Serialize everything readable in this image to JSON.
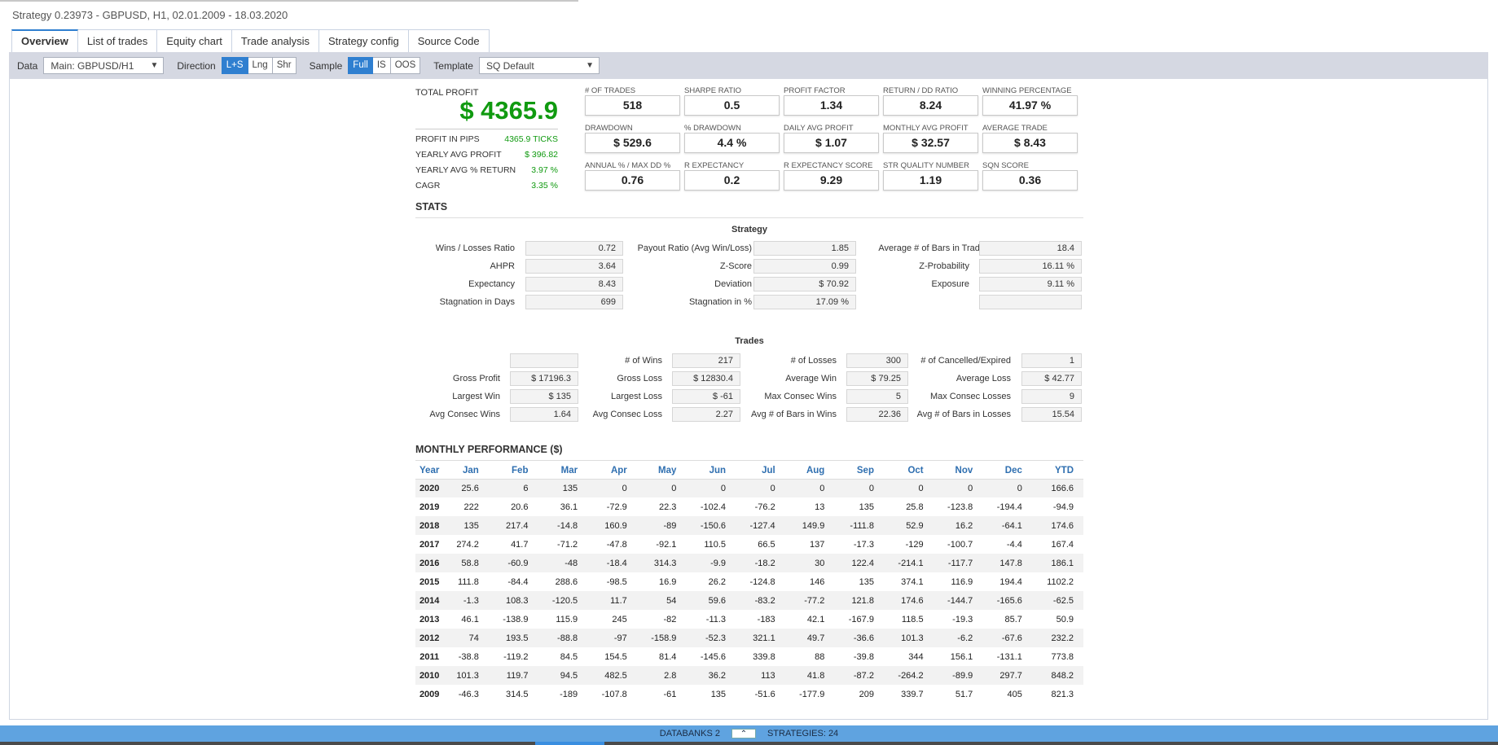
{
  "window_title": "Strategy 0.23973 - GBPUSD, H1, 02.01.2009 - 18.03.2020",
  "tabs": [
    "Overview",
    "List of trades",
    "Equity chart",
    "Trade analysis",
    "Strategy config",
    "Source Code"
  ],
  "toolbar": {
    "data_label": "Data",
    "data_value": "Main: GBPUSD/H1",
    "direction_label": "Direction",
    "direction_options": [
      "L+S",
      "Lng",
      "Shr"
    ],
    "direction_selected": "L+S",
    "sample_label": "Sample",
    "sample_options": [
      "Full",
      "IS",
      "OOS"
    ],
    "sample_selected": "Full",
    "template_label": "Template",
    "template_value": "SQ Default"
  },
  "total_profit": {
    "label": "TOTAL PROFIT",
    "value": "$ 4365.9",
    "rows": [
      {
        "label": "PROFIT IN PIPS",
        "value": "4365.9 TICKS"
      },
      {
        "label": "YEARLY AVG PROFIT",
        "value": "$ 396.82"
      },
      {
        "label": "YEARLY AVG % RETURN",
        "value": "3.97 %"
      },
      {
        "label": "CAGR",
        "value": "3.35 %"
      }
    ]
  },
  "metrics": [
    {
      "label": "# OF TRADES",
      "value": "518"
    },
    {
      "label": "SHARPE RATIO",
      "value": "0.5"
    },
    {
      "label": "PROFIT FACTOR",
      "value": "1.34"
    },
    {
      "label": "RETURN / DD RATIO",
      "value": "8.24"
    },
    {
      "label": "WINNING PERCENTAGE",
      "value": "41.97 %"
    },
    {
      "label": "DRAWDOWN",
      "value": "$ 529.6"
    },
    {
      "label": "% DRAWDOWN",
      "value": "4.4 %"
    },
    {
      "label": "DAILY AVG PROFIT",
      "value": "$ 1.07"
    },
    {
      "label": "MONTHLY AVG PROFIT",
      "value": "$ 32.57"
    },
    {
      "label": "AVERAGE TRADE",
      "value": "$ 8.43"
    },
    {
      "label": "ANNUAL % / MAX DD %",
      "value": "0.76"
    },
    {
      "label": "R EXPECTANCY",
      "value": "0.2"
    },
    {
      "label": "R EXPECTANCY SCORE",
      "value": "9.29"
    },
    {
      "label": "STR QUALITY NUMBER",
      "value": "1.19"
    },
    {
      "label": "SQN SCORE",
      "value": "0.36"
    }
  ],
  "stats": {
    "title": "STATS",
    "strategy_title": "Strategy",
    "strategy_rows": [
      [
        {
          "label": "Wins / Losses Ratio",
          "value": "0.72"
        },
        {
          "label": "Payout Ratio (Avg Win/Loss)",
          "value": "1.85"
        },
        {
          "label": "Average # of Bars in Trade",
          "value": "18.4"
        }
      ],
      [
        {
          "label": "AHPR",
          "value": "3.64"
        },
        {
          "label": "Z-Score",
          "value": "0.99"
        },
        {
          "label": "Z-Probability",
          "value": "16.11 %"
        }
      ],
      [
        {
          "label": "Expectancy",
          "value": "8.43"
        },
        {
          "label": "Deviation",
          "value": "$ 70.92"
        },
        {
          "label": "Exposure",
          "value": "9.11 %"
        }
      ],
      [
        {
          "label": "Stagnation in Days",
          "value": "699"
        },
        {
          "label": "Stagnation in %",
          "value": "17.09 %"
        },
        {
          "label": "",
          "value": ""
        }
      ]
    ],
    "trades_title": "Trades",
    "trades_rows": [
      [
        {
          "label": "",
          "value": ""
        },
        {
          "label": "# of Wins",
          "value": "217"
        },
        {
          "label": "# of Losses",
          "value": "300"
        },
        {
          "label": "# of Cancelled/Expired",
          "value": "1"
        }
      ],
      [
        {
          "label": "Gross Profit",
          "value": "$ 17196.3"
        },
        {
          "label": "Gross Loss",
          "value": "$ 12830.4"
        },
        {
          "label": "Average Win",
          "value": "$ 79.25"
        },
        {
          "label": "Average Loss",
          "value": "$ 42.77"
        }
      ],
      [
        {
          "label": "Largest Win",
          "value": "$ 135"
        },
        {
          "label": "Largest Loss",
          "value": "$ -61"
        },
        {
          "label": "Max Consec Wins",
          "value": "5"
        },
        {
          "label": "Max Consec Losses",
          "value": "9"
        }
      ],
      [
        {
          "label": "Avg Consec Wins",
          "value": "1.64"
        },
        {
          "label": "Avg Consec Loss",
          "value": "2.27"
        },
        {
          "label": "Avg # of Bars in Wins",
          "value": "22.36"
        },
        {
          "label": "Avg # of Bars in Losses",
          "value": "15.54"
        }
      ]
    ]
  },
  "monthly": {
    "title": "MONTHLY PERFORMANCE ($)",
    "headers": [
      "Year",
      "Jan",
      "Feb",
      "Mar",
      "Apr",
      "May",
      "Jun",
      "Jul",
      "Aug",
      "Sep",
      "Oct",
      "Nov",
      "Dec",
      "YTD"
    ],
    "rows": [
      [
        "2020",
        "25.6",
        "6",
        "135",
        "0",
        "0",
        "0",
        "0",
        "0",
        "0",
        "0",
        "0",
        "0",
        "166.6"
      ],
      [
        "2019",
        "222",
        "20.6",
        "36.1",
        "-72.9",
        "22.3",
        "-102.4",
        "-76.2",
        "13",
        "135",
        "25.8",
        "-123.8",
        "-194.4",
        "-94.9"
      ],
      [
        "2018",
        "135",
        "217.4",
        "-14.8",
        "160.9",
        "-89",
        "-150.6",
        "-127.4",
        "149.9",
        "-111.8",
        "52.9",
        "16.2",
        "-64.1",
        "174.6"
      ],
      [
        "2017",
        "274.2",
        "41.7",
        "-71.2",
        "-47.8",
        "-92.1",
        "110.5",
        "66.5",
        "137",
        "-17.3",
        "-129",
        "-100.7",
        "-4.4",
        "167.4"
      ],
      [
        "2016",
        "58.8",
        "-60.9",
        "-48",
        "-18.4",
        "314.3",
        "-9.9",
        "-18.2",
        "30",
        "122.4",
        "-214.1",
        "-117.7",
        "147.8",
        "186.1"
      ],
      [
        "2015",
        "111.8",
        "-84.4",
        "288.6",
        "-98.5",
        "16.9",
        "26.2",
        "-124.8",
        "146",
        "135",
        "374.1",
        "116.9",
        "194.4",
        "1102.2"
      ],
      [
        "2014",
        "-1.3",
        "108.3",
        "-120.5",
        "11.7",
        "54",
        "59.6",
        "-83.2",
        "-77.2",
        "121.8",
        "174.6",
        "-144.7",
        "-165.6",
        "-62.5"
      ],
      [
        "2013",
        "46.1",
        "-138.9",
        "115.9",
        "245",
        "-82",
        "-11.3",
        "-183",
        "42.1",
        "-167.9",
        "118.5",
        "-19.3",
        "85.7",
        "50.9"
      ],
      [
        "2012",
        "74",
        "193.5",
        "-88.8",
        "-97",
        "-158.9",
        "-52.3",
        "321.1",
        "49.7",
        "-36.6",
        "101.3",
        "-6.2",
        "-67.6",
        "232.2"
      ],
      [
        "2011",
        "-38.8",
        "-119.2",
        "84.5",
        "154.5",
        "81.4",
        "-145.6",
        "339.8",
        "88",
        "-39.8",
        "344",
        "156.1",
        "-131.1",
        "773.8"
      ],
      [
        "2010",
        "101.3",
        "119.7",
        "94.5",
        "482.5",
        "2.8",
        "36.2",
        "113",
        "41.8",
        "-87.2",
        "-264.2",
        "-89.9",
        "297.7",
        "848.2"
      ],
      [
        "2009",
        "-46.3",
        "314.5",
        "-189",
        "-107.8",
        "-61",
        "135",
        "-51.6",
        "-177.9",
        "209",
        "339.7",
        "51.7",
        "405",
        "821.3"
      ]
    ]
  },
  "bottom_bar": {
    "databanks": "DATABANKS 2",
    "strategies": "STRATEGIES: 24"
  }
}
